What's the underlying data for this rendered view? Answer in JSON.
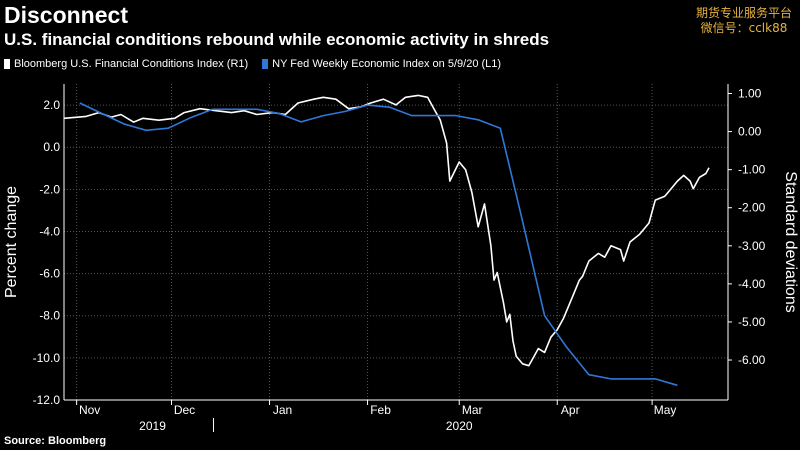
{
  "header": {
    "title": "Disconnect",
    "subtitle": "U.S. financial conditions rebound while economic activity in shreds"
  },
  "watermark": {
    "line1": "期货专业服务平台",
    "line2": "微信号：cclk88"
  },
  "footer": {
    "source": "Source: Bloomberg"
  },
  "colors": {
    "background": "#000000",
    "series1": "#ffffff",
    "series2": "#2f78d8",
    "grid": "#555555"
  },
  "chart_data": {
    "type": "line",
    "left_axis": {
      "label": "Percent change",
      "min": -12,
      "max": 3,
      "ticks": [
        "2.0",
        "0.0",
        "-2.0",
        "-4.0",
        "-6.0",
        "-8.0",
        "-10.0",
        "-12.0"
      ]
    },
    "right_axis": {
      "label": "Standard deviations",
      "min": -7.05,
      "max": 1.25,
      "ticks": [
        "1.00",
        "0.00",
        "-1.00",
        "-2.00",
        "-3.00",
        "-4.00",
        "-5.00",
        "-6.00"
      ]
    },
    "x_axis": {
      "start": "2019-10-28",
      "end": "2020-05-25",
      "month_labels": [
        {
          "label": "Nov",
          "date": "2019-11-01"
        },
        {
          "label": "Dec",
          "date": "2019-12-01"
        },
        {
          "label": "Jan",
          "date": "2020-01-01"
        },
        {
          "label": "Feb",
          "date": "2020-02-01"
        },
        {
          "label": "Mar",
          "date": "2020-03-01"
        },
        {
          "label": "Apr",
          "date": "2020-04-01"
        },
        {
          "label": "May",
          "date": "2020-05-01"
        }
      ],
      "year_labels": [
        {
          "label": "2019",
          "date": "2019-11-25"
        },
        {
          "label": "2020",
          "date": "2020-03-01"
        }
      ]
    },
    "grid": true,
    "series": [
      {
        "name": "Bloomberg U.S. Financial Conditions Index (R1)",
        "axis": "right",
        "color": "#ffffff",
        "points": [
          [
            "2019-10-28",
            0.35
          ],
          [
            "2019-11-04",
            0.4
          ],
          [
            "2019-11-08",
            0.5
          ],
          [
            "2019-11-12",
            0.38
          ],
          [
            "2019-11-15",
            0.45
          ],
          [
            "2019-11-19",
            0.25
          ],
          [
            "2019-11-22",
            0.35
          ],
          [
            "2019-11-27",
            0.3
          ],
          [
            "2019-12-02",
            0.35
          ],
          [
            "2019-12-05",
            0.5
          ],
          [
            "2019-12-10",
            0.6
          ],
          [
            "2019-12-15",
            0.55
          ],
          [
            "2019-12-20",
            0.5
          ],
          [
            "2019-12-24",
            0.55
          ],
          [
            "2019-12-28",
            0.45
          ],
          [
            "2020-01-02",
            0.5
          ],
          [
            "2020-01-06",
            0.45
          ],
          [
            "2020-01-10",
            0.75
          ],
          [
            "2020-01-15",
            0.85
          ],
          [
            "2020-01-18",
            0.9
          ],
          [
            "2020-01-22",
            0.85
          ],
          [
            "2020-01-26",
            0.6
          ],
          [
            "2020-01-30",
            0.65
          ],
          [
            "2020-02-02",
            0.75
          ],
          [
            "2020-02-06",
            0.85
          ],
          [
            "2020-02-10",
            0.7
          ],
          [
            "2020-02-13",
            0.9
          ],
          [
            "2020-02-17",
            0.95
          ],
          [
            "2020-02-20",
            0.9
          ],
          [
            "2020-02-22",
            0.6
          ],
          [
            "2020-02-24",
            0.3
          ],
          [
            "2020-02-26",
            -0.3
          ],
          [
            "2020-02-27",
            -1.3
          ],
          [
            "2020-03-01",
            -0.8
          ],
          [
            "2020-03-03",
            -1.0
          ],
          [
            "2020-03-05",
            -1.6
          ],
          [
            "2020-03-07",
            -2.5
          ],
          [
            "2020-03-09",
            -1.9
          ],
          [
            "2020-03-11",
            -3.0
          ],
          [
            "2020-03-12",
            -3.9
          ],
          [
            "2020-03-13",
            -3.7
          ],
          [
            "2020-03-15",
            -4.5
          ],
          [
            "2020-03-16",
            -5.0
          ],
          [
            "2020-03-17",
            -4.8
          ],
          [
            "2020-03-18",
            -5.5
          ],
          [
            "2020-03-19",
            -5.9
          ],
          [
            "2020-03-21",
            -6.1
          ],
          [
            "2020-03-23",
            -6.15
          ],
          [
            "2020-03-24",
            -6.0
          ],
          [
            "2020-03-26",
            -5.7
          ],
          [
            "2020-03-28",
            -5.8
          ],
          [
            "2020-03-30",
            -5.4
          ],
          [
            "2020-04-01",
            -5.2
          ],
          [
            "2020-04-03",
            -4.9
          ],
          [
            "2020-04-06",
            -4.3
          ],
          [
            "2020-04-08",
            -3.9
          ],
          [
            "2020-04-09",
            -3.8
          ],
          [
            "2020-04-11",
            -3.4
          ],
          [
            "2020-04-14",
            -3.2
          ],
          [
            "2020-04-16",
            -3.3
          ],
          [
            "2020-04-18",
            -3.0
          ],
          [
            "2020-04-21",
            -3.1
          ],
          [
            "2020-04-22",
            -3.4
          ],
          [
            "2020-04-24",
            -2.9
          ],
          [
            "2020-04-27",
            -2.7
          ],
          [
            "2020-04-30",
            -2.4
          ],
          [
            "2020-05-02",
            -1.8
          ],
          [
            "2020-05-05",
            -1.7
          ],
          [
            "2020-05-07",
            -1.5
          ],
          [
            "2020-05-09",
            -1.3
          ],
          [
            "2020-05-11",
            -1.15
          ],
          [
            "2020-05-13",
            -1.3
          ],
          [
            "2020-05-14",
            -1.5
          ],
          [
            "2020-05-16",
            -1.2
          ],
          [
            "2020-05-18",
            -1.1
          ],
          [
            "2020-05-19",
            -0.95
          ]
        ]
      },
      {
        "name": "NY Fed Weekly Economic Index on 5/9/20 (L1)",
        "axis": "left",
        "color": "#2f78d8",
        "points": [
          [
            "2019-11-02",
            2.1
          ],
          [
            "2019-11-09",
            1.6
          ],
          [
            "2019-11-16",
            1.1
          ],
          [
            "2019-11-23",
            0.8
          ],
          [
            "2019-11-30",
            0.9
          ],
          [
            "2019-12-07",
            1.4
          ],
          [
            "2019-12-14",
            1.8
          ],
          [
            "2019-12-21",
            1.8
          ],
          [
            "2019-12-28",
            1.8
          ],
          [
            "2020-01-04",
            1.6
          ],
          [
            "2020-01-11",
            1.2
          ],
          [
            "2020-01-18",
            1.5
          ],
          [
            "2020-01-25",
            1.7
          ],
          [
            "2020-02-01",
            2.0
          ],
          [
            "2020-02-08",
            1.9
          ],
          [
            "2020-02-15",
            1.5
          ],
          [
            "2020-02-22",
            1.5
          ],
          [
            "2020-02-29",
            1.5
          ],
          [
            "2020-03-07",
            1.3
          ],
          [
            "2020-03-14",
            0.9
          ],
          [
            "2020-03-21",
            -3.5
          ],
          [
            "2020-03-28",
            -8.0
          ],
          [
            "2020-04-04",
            -9.5
          ],
          [
            "2020-04-11",
            -10.8
          ],
          [
            "2020-04-18",
            -11.0
          ],
          [
            "2020-04-25",
            -11.0
          ],
          [
            "2020-05-02",
            -11.0
          ],
          [
            "2020-05-09",
            -11.3
          ]
        ]
      }
    ]
  }
}
